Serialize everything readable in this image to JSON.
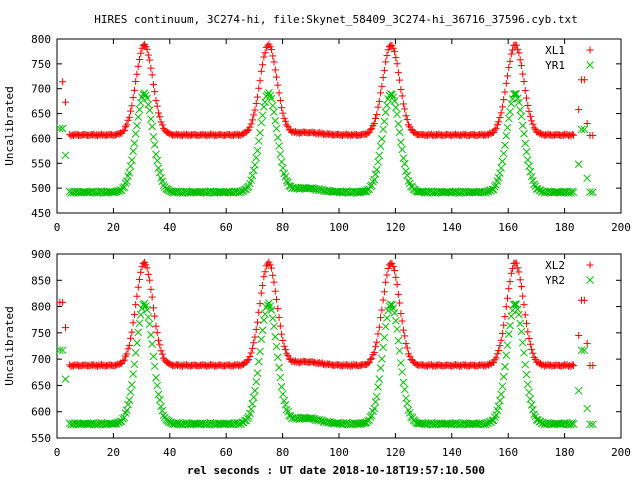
{
  "title": "HIRES continuum, 3C274-hi, file:Skynet_58409_3C274-hi_36716_37596.cyb.txt",
  "xlabel": "rel seconds : UT date 2018-10-18T19:57:10.500",
  "colors": {
    "red": "#ff0000",
    "green": "#00c000",
    "axis": "#000000"
  },
  "chart_data": [
    {
      "type": "scatter",
      "ylabel": "Uncalibrated",
      "xlim": [
        0,
        200
      ],
      "ylim": [
        450,
        800
      ],
      "xticks": [
        0,
        20,
        40,
        60,
        80,
        100,
        120,
        140,
        160,
        180,
        200
      ],
      "yticks": [
        450,
        500,
        550,
        600,
        650,
        700,
        750,
        800
      ],
      "grid": false,
      "legend": "top-right",
      "peaks_x": [
        31,
        75,
        118.5,
        162.5
      ],
      "series": [
        {
          "name": "XL1",
          "marker": "plus",
          "color": "#ff0000",
          "baseline": 607,
          "peak": 788,
          "mid_bump": 612,
          "outliers": [
            [
              2,
              714
            ],
            [
              3,
              673
            ],
            [
              186,
              718
            ],
            [
              187,
              718
            ],
            [
              185,
              658
            ],
            [
              188,
              630
            ],
            [
              189,
              606
            ],
            [
              190,
              606
            ]
          ]
        },
        {
          "name": "YR1",
          "marker": "cross",
          "color": "#00c000",
          "baseline": 492,
          "peak": 690,
          "mid_bump": 500,
          "outliers": [
            [
              1,
              620
            ],
            [
              2,
              620
            ],
            [
              3,
              566
            ],
            [
              185,
              548
            ],
            [
              186,
              618
            ],
            [
              187,
              618
            ],
            [
              188,
              520
            ],
            [
              189,
              492
            ],
            [
              190,
              492
            ]
          ]
        }
      ]
    },
    {
      "type": "scatter",
      "ylabel": "Uncalibrated",
      "xlim": [
        0,
        200
      ],
      "ylim": [
        550,
        900
      ],
      "xticks": [
        0,
        20,
        40,
        60,
        80,
        100,
        120,
        140,
        160,
        180,
        200
      ],
      "yticks": [
        550,
        600,
        650,
        700,
        750,
        800,
        850,
        900
      ],
      "grid": false,
      "legend": "top-right",
      "peaks_x": [
        31,
        75,
        118.5,
        162.5
      ],
      "series": [
        {
          "name": "XL2",
          "marker": "plus",
          "color": "#ff0000",
          "baseline": 688,
          "peak": 883,
          "mid_bump": 695,
          "outliers": [
            [
              1,
              808
            ],
            [
              2,
              808
            ],
            [
              3,
              760
            ],
            [
              185,
              745
            ],
            [
              186,
              812
            ],
            [
              187,
              812
            ],
            [
              188,
              730
            ],
            [
              189,
              688
            ],
            [
              190,
              688
            ]
          ]
        },
        {
          "name": "YR2",
          "marker": "cross",
          "color": "#00c000",
          "baseline": 577,
          "peak": 805,
          "mid_bump": 588,
          "outliers": [
            [
              1,
              717
            ],
            [
              2,
              717
            ],
            [
              3,
              662
            ],
            [
              185,
              640
            ],
            [
              186,
              717
            ],
            [
              187,
              717
            ],
            [
              188,
              606
            ],
            [
              189,
              576
            ],
            [
              190,
              576
            ]
          ]
        }
      ]
    }
  ]
}
